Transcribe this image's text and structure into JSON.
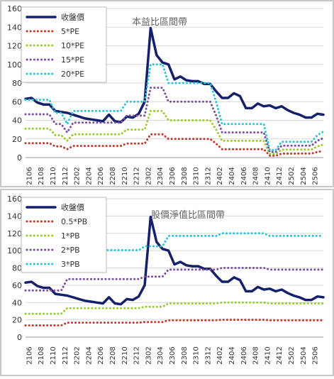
{
  "chart_data": [
    {
      "type": "line",
      "title": "本益比區間帶",
      "legend": "upper left",
      "grid": true,
      "categories": [
        null,
        "2106",
        null,
        "2108",
        null,
        "2110",
        null,
        "2112",
        null,
        "2202",
        null,
        "2204",
        null,
        "2206",
        null,
        "2208",
        null,
        "2210",
        null,
        "2212",
        null,
        "2302",
        null,
        "2304",
        null,
        "2306",
        null,
        "2308",
        null,
        "2310",
        null,
        "2312",
        null,
        "2402",
        null,
        "2404",
        null,
        "2406",
        null,
        "2408",
        null,
        "2410",
        null,
        "2412",
        null,
        "2502",
        null,
        "2504",
        null,
        "2506",
        null
      ],
      "ylim": [
        0,
        160
      ],
      "yticks": [
        0,
        20,
        40,
        60,
        80,
        100,
        120,
        140,
        160
      ],
      "series": [
        {
          "name": "收盤價",
          "color": "#14206b",
          "values": [
            63,
            64,
            59,
            57,
            57,
            50,
            49,
            48,
            46,
            44,
            42,
            41,
            40,
            39,
            46,
            39,
            38,
            44,
            43,
            47,
            60,
            139,
            110,
            102,
            100,
            84,
            87,
            83,
            82,
            82,
            79,
            79,
            71,
            64,
            64,
            69,
            66,
            53,
            53,
            58,
            55,
            56,
            53,
            55,
            51,
            48,
            46,
            43,
            43,
            47,
            46
          ]
        },
        {
          "name": "5*PE",
          "color": "#c0392b",
          "values": [
            15.5,
            15.5,
            15.5,
            15.5,
            15.5,
            12,
            12,
            9,
            12.5,
            12.5,
            12.5,
            12.5,
            12.5,
            12.5,
            12.5,
            12.5,
            12.5,
            15,
            15,
            15,
            15,
            25,
            25,
            25,
            20,
            20,
            20,
            20,
            20,
            20,
            20,
            20,
            15,
            9,
            9,
            9,
            9,
            9,
            9,
            9,
            9,
            2,
            2,
            4.25,
            4.25,
            4.25,
            4.25,
            4.25,
            4.25,
            6,
            7
          ]
        },
        {
          "name": "10*PE",
          "color": "#9acd32",
          "values": [
            31,
            31,
            31,
            31,
            31,
            24,
            24,
            18,
            25,
            25,
            25,
            25,
            25,
            25,
            25,
            25,
            25,
            30,
            30,
            30,
            30,
            50,
            50,
            50,
            40,
            40,
            40,
            40,
            40,
            40,
            40,
            40,
            30,
            18,
            18,
            18,
            18,
            18,
            18,
            18,
            18,
            4,
            4,
            8.5,
            8.5,
            8.5,
            8.5,
            8.5,
            8.5,
            12,
            14
          ]
        },
        {
          "name": "15*PE",
          "color": "#7b4fa0",
          "values": [
            46.5,
            46.5,
            46.5,
            46.5,
            46.5,
            36,
            36,
            27,
            37.5,
            37.5,
            37.5,
            37.5,
            37.5,
            37.5,
            37.5,
            37.5,
            37.5,
            45,
            45,
            45,
            45,
            75,
            75,
            75,
            60,
            60,
            60,
            60,
            60,
            60,
            60,
            60,
            45,
            27,
            27,
            27,
            27,
            27,
            27,
            27,
            27,
            6,
            6,
            12.75,
            12.75,
            12.75,
            12.75,
            12.75,
            12.75,
            18,
            21
          ]
        },
        {
          "name": "20*PE",
          "color": "#2ec4d6",
          "values": [
            62,
            62,
            62,
            62,
            62,
            48,
            48,
            36,
            50,
            50,
            50,
            50,
            50,
            50,
            50,
            50,
            50,
            60,
            60,
            60,
            60,
            100,
            100,
            100,
            80,
            80,
            80,
            80,
            80,
            80,
            80,
            80,
            60,
            36,
            36,
            36,
            36,
            36,
            36,
            36,
            36,
            8,
            8,
            17,
            17,
            17,
            17,
            17,
            17,
            24,
            28
          ]
        }
      ]
    },
    {
      "type": "line",
      "title": "股價淨值比區間帶",
      "legend": "upper left",
      "grid": true,
      "categories": [
        null,
        "2106",
        null,
        "2108",
        null,
        "2110",
        null,
        "2112",
        null,
        "2202",
        null,
        "2204",
        null,
        "2206",
        null,
        "2208",
        null,
        "2210",
        null,
        "2212",
        null,
        "2302",
        null,
        "2304",
        null,
        "2306",
        null,
        "2308",
        null,
        "2310",
        null,
        "2312",
        null,
        "2402",
        null,
        "2404",
        null,
        "2406",
        null,
        "2408",
        null,
        "2410",
        null,
        "2412",
        null,
        "2502",
        null,
        "2504",
        null,
        "2506",
        null
      ],
      "ylim": [
        0,
        160
      ],
      "yticks": [
        0,
        20,
        40,
        60,
        80,
        100,
        120,
        140,
        160
      ],
      "series": [
        {
          "name": "收盤價",
          "color": "#14206b",
          "values": [
            63,
            64,
            59,
            57,
            57,
            50,
            49,
            48,
            46,
            44,
            42,
            41,
            40,
            39,
            46,
            39,
            38,
            44,
            43,
            47,
            60,
            139,
            110,
            102,
            100,
            84,
            87,
            83,
            82,
            82,
            79,
            79,
            71,
            64,
            64,
            69,
            66,
            53,
            53,
            58,
            55,
            56,
            53,
            55,
            51,
            48,
            46,
            43,
            43,
            47,
            46
          ]
        },
        {
          "name": "0.5*PB",
          "color": "#c0392b",
          "values": [
            13.5,
            13.5,
            13.5,
            13.5,
            13.5,
            13.5,
            13.5,
            16.75,
            16.75,
            16.75,
            16.75,
            16.75,
            16.75,
            16.75,
            16.75,
            16.75,
            16.75,
            16.75,
            16.75,
            16.75,
            17.5,
            17.5,
            17.5,
            17.5,
            19.5,
            19.5,
            19.5,
            19.5,
            19.5,
            19.5,
            19.5,
            19.5,
            19.5,
            20,
            20,
            20,
            20,
            20,
            20,
            20,
            20,
            19.5,
            19.5,
            19.5,
            19.5,
            19.5,
            19.5,
            19.5,
            19.5,
            19.5,
            19.5
          ]
        },
        {
          "name": "1*PB",
          "color": "#9acd32",
          "values": [
            27,
            27,
            27,
            27,
            27,
            27,
            27,
            33.5,
            33.5,
            33.5,
            33.5,
            33.5,
            33.5,
            33.5,
            33.5,
            33.5,
            33.5,
            33.5,
            33.5,
            33.5,
            35,
            35,
            35,
            35,
            39,
            39,
            39,
            39,
            39,
            39,
            39,
            39,
            39,
            40,
            40,
            40,
            40,
            40,
            40,
            40,
            40,
            39,
            39,
            39,
            39,
            39,
            39,
            39,
            39,
            39,
            39
          ]
        },
        {
          "name": "2*PB",
          "color": "#7b4fa0",
          "values": [
            54,
            54,
            54,
            54,
            54,
            54,
            54,
            67,
            67,
            67,
            67,
            67,
            67,
            67,
            67,
            67,
            67,
            67,
            67,
            67,
            70,
            70,
            70,
            70,
            78,
            78,
            78,
            78,
            78,
            78,
            78,
            78,
            78,
            80,
            80,
            80,
            80,
            80,
            80,
            80,
            80,
            78,
            78,
            78,
            78,
            78,
            78,
            78,
            78,
            78,
            78
          ]
        },
        {
          "name": "3*PB",
          "color": "#2ec4d6",
          "values": [
            81,
            81,
            81,
            81,
            81,
            81,
            81,
            100.5,
            100.5,
            100.5,
            100.5,
            100.5,
            100.5,
            100.5,
            100.5,
            100.5,
            100.5,
            100.5,
            100.5,
            100.5,
            105,
            105,
            105,
            105,
            117,
            117,
            117,
            117,
            117,
            117,
            117,
            117,
            117,
            120,
            120,
            120,
            120,
            120,
            120,
            120,
            120,
            117,
            117,
            117,
            117,
            117,
            117,
            117,
            117,
            117,
            117
          ]
        }
      ]
    }
  ]
}
